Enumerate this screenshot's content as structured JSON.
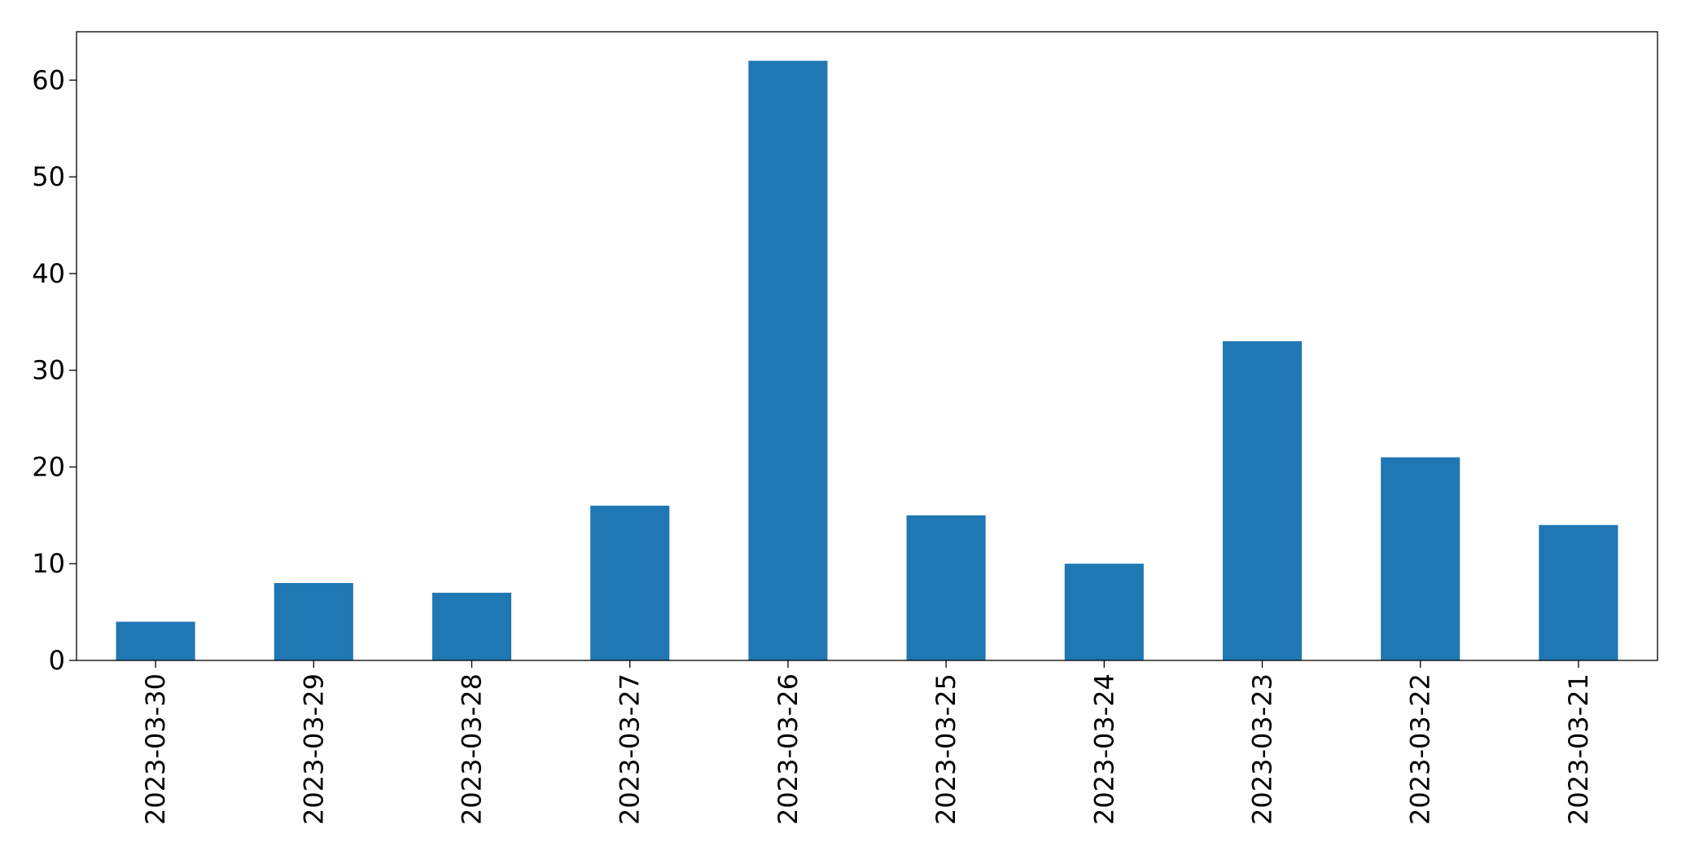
{
  "chart_data": {
    "type": "bar",
    "title": "",
    "xlabel": "",
    "ylabel": "",
    "categories": [
      "2023-03-30",
      "2023-03-29",
      "2023-03-28",
      "2023-03-27",
      "2023-03-26",
      "2023-03-25",
      "2023-03-24",
      "2023-03-23",
      "2023-03-22",
      "2023-03-21"
    ],
    "values": [
      4,
      8,
      7,
      16,
      62,
      15,
      10,
      33,
      21,
      14
    ],
    "ylim": [
      0,
      65
    ],
    "yticks": [
      0,
      10,
      20,
      30,
      40,
      50,
      60
    ],
    "grid": false,
    "legend": "none",
    "bar_color": "#1f77b4",
    "x_tick_rotation": "vertical"
  }
}
